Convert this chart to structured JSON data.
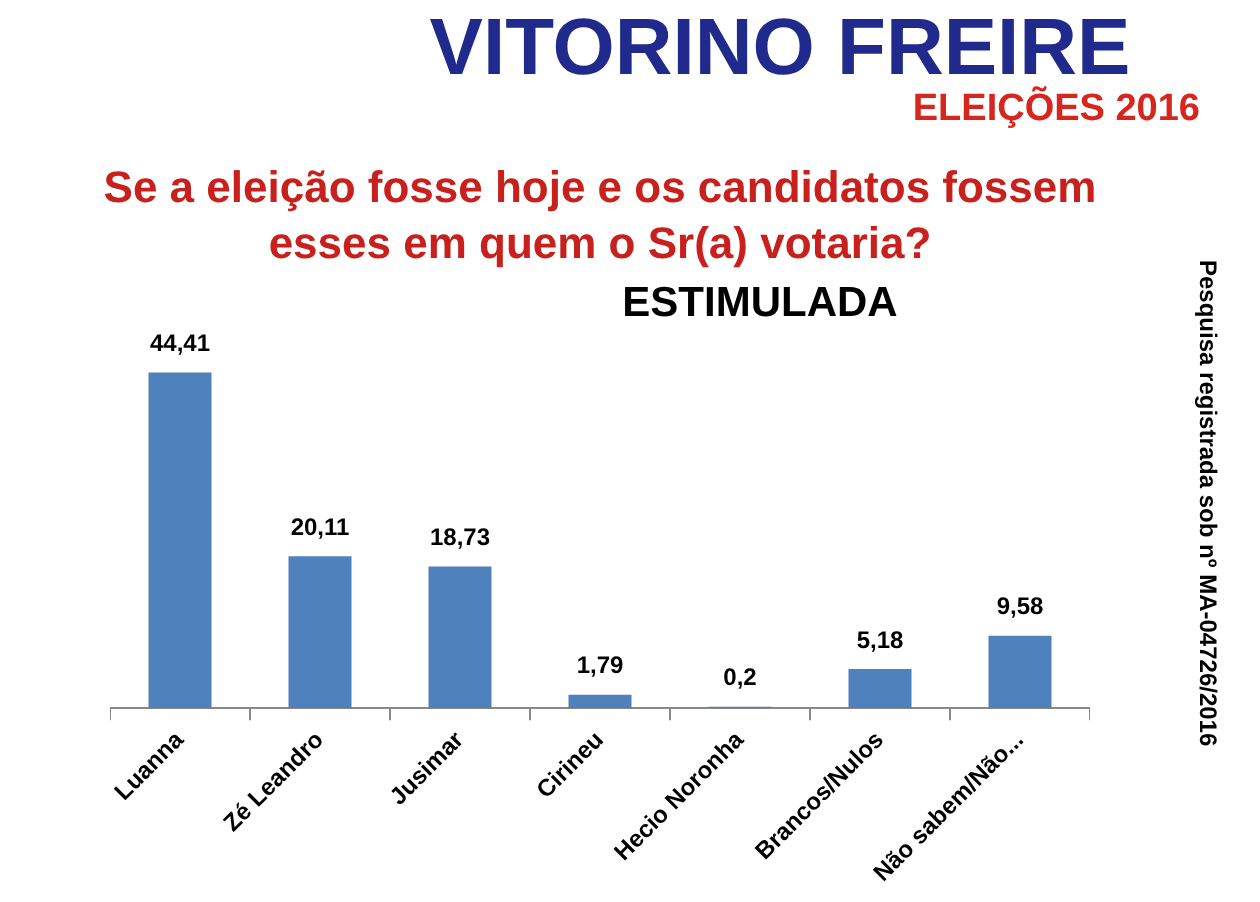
{
  "chart_data": {
    "type": "bar",
    "title": "VITORINO FREIRE",
    "subtitle": "ELEIÇÕES 2016",
    "annotations": [
      "Se a eleição fosse hoje e os candidatos fossem esses em quem o Sr(a) votaria?",
      "ESTIMULADA",
      "Pesquisa registrada sob nº MA-04726/2016"
    ],
    "categories": [
      "Luanna",
      "Zé Leandro",
      "Jusimar",
      "Cirineu",
      "Hecio Noronha",
      "Brancos/Nulos",
      "Não sabem/Não..."
    ],
    "values": [
      44.41,
      20.11,
      18.73,
      1.79,
      0.2,
      5.18,
      9.58
    ],
    "value_labels": [
      "44,41",
      "20,11",
      "18,73",
      "1,79",
      "0,2",
      "5,18",
      "9,58"
    ],
    "color": "#4f81bd",
    "grid": false,
    "legend": false,
    "tick_labels": "x"
  }
}
